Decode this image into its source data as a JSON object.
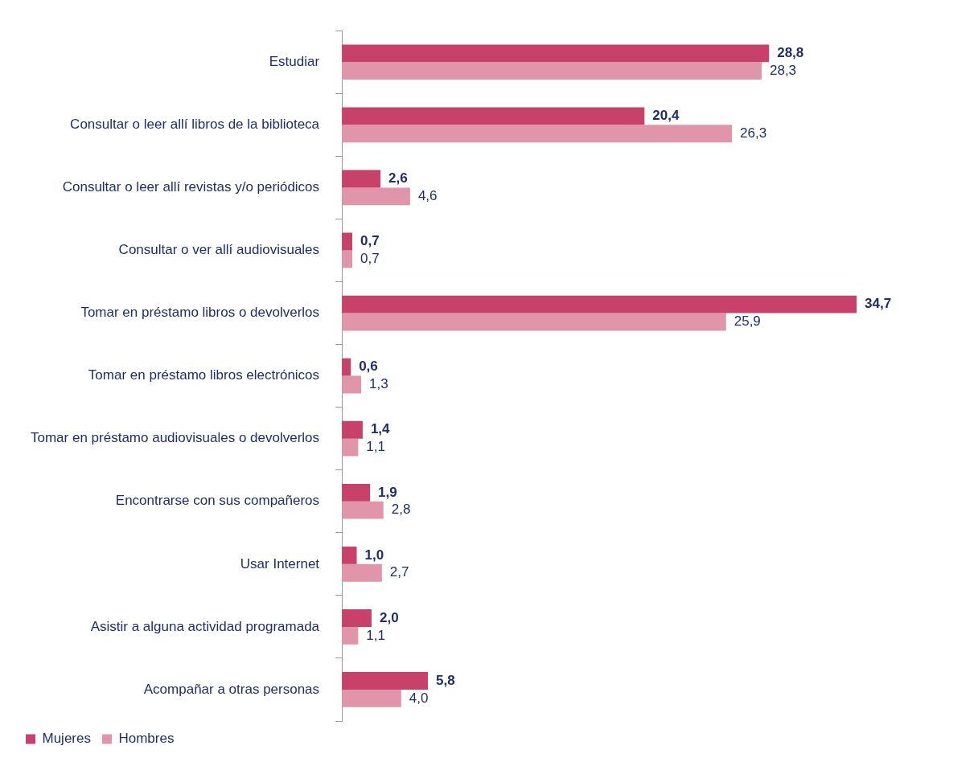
{
  "chart_data": {
    "type": "bar",
    "orientation": "horizontal",
    "categories": [
      "Estudiar",
      "Consultar o leer allí libros de la biblioteca",
      "Consultar o leer allí revistas y/o periódicos",
      "Consultar o ver allí audiovisuales",
      "Tomar en préstamo libros o devolverlos",
      "Tomar en préstamo libros electrónicos",
      "Tomar en préstamo audiovisuales o devolverlos",
      "Encontrarse con sus compañeros",
      "Usar Internet",
      "Asistir a alguna actividad programada",
      "Acompañar a otras personas"
    ],
    "series": [
      {
        "name": "Mujeres",
        "color": "#c8416a",
        "values": [
          28.8,
          20.4,
          2.6,
          0.7,
          34.7,
          0.6,
          1.4,
          1.9,
          1.0,
          2.0,
          5.8
        ],
        "value_labels": [
          "28,8",
          "20,4",
          "2,6",
          "0,7",
          "34,7",
          "0,6",
          "1,4",
          "1,9",
          "1,0",
          "2,0",
          "5,8"
        ]
      },
      {
        "name": "Hombres",
        "color": "#e095ab",
        "values": [
          28.3,
          26.3,
          4.6,
          0.7,
          25.9,
          1.3,
          1.1,
          2.8,
          2.7,
          1.1,
          4.0
        ],
        "value_labels": [
          "28,3",
          "26,3",
          "4,6",
          "0,7",
          "25,9",
          "1,3",
          "1,1",
          "2,8",
          "2,7",
          "1,1",
          "4,0"
        ]
      }
    ],
    "legend": "bottom left"
  }
}
